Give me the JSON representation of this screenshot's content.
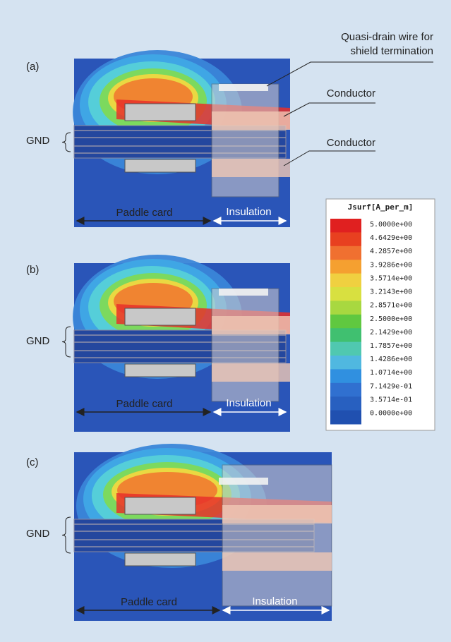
{
  "panels": [
    {
      "label": "(a)",
      "gnd": "GND",
      "paddle": "Paddle card",
      "insulation": "Insulation"
    },
    {
      "label": "(b)",
      "gnd": "GND",
      "paddle": "Paddle card",
      "insulation": "Insulation"
    },
    {
      "label": "(c)",
      "gnd": "GND",
      "paddle": "Paddle card",
      "insulation": "Insulation"
    }
  ],
  "annotations": {
    "quasi_drain": [
      "Quasi-drain wire for",
      "shield termination"
    ],
    "conductor_top": "Conductor",
    "conductor_bottom": "Conductor"
  },
  "legend": {
    "title": "Jsurf[A_per_m]",
    "labels": [
      "5.0000e+00",
      "4.6429e+00",
      "4.2857e+00",
      "3.9286e+00",
      "3.5714e+00",
      "3.2143e+00",
      "2.8571e+00",
      "2.5000e+00",
      "2.1429e+00",
      "1.7857e+00",
      "1.4286e+00",
      "1.0714e+00",
      "7.1429e-01",
      "3.5714e-01",
      "0.0000e+00"
    ],
    "colors": [
      "#e02020",
      "#e84020",
      "#f07030",
      "#f5a030",
      "#f0d040",
      "#d8e040",
      "#a8d840",
      "#60c840",
      "#40c070",
      "#50c8b0",
      "#50b8e0",
      "#3090e0",
      "#3070d0",
      "#2860c0",
      "#2050b0"
    ]
  }
}
